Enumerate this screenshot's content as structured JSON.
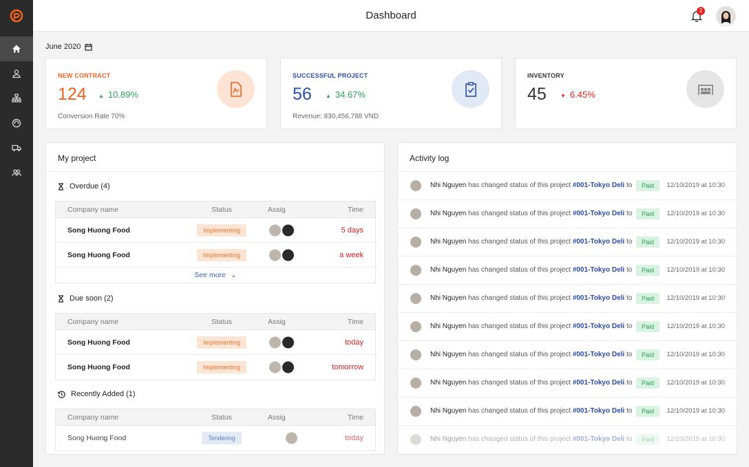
{
  "header": {
    "title": "Dashboard",
    "notification_count": "2"
  },
  "date": {
    "label": "June 2020"
  },
  "sidebar": {
    "items": [
      {
        "name": "home",
        "active": true
      },
      {
        "name": "user"
      },
      {
        "name": "hierarchy"
      },
      {
        "name": "headset"
      },
      {
        "name": "truck"
      },
      {
        "name": "team"
      }
    ]
  },
  "stats": [
    {
      "label": "NEW CONTRACT",
      "value": "124",
      "change": "10.89%",
      "direction": "up",
      "sub": "Conversion Rate 70%",
      "color": "#f0621f",
      "circle_bg": "#fde3d4",
      "icon": "document-icon"
    },
    {
      "label": "SUCCESSFUL PROJECT",
      "value": "56",
      "change": "34.67%",
      "direction": "up",
      "sub": "Revenue: 830,456,788 VND",
      "color": "#2b4ea8",
      "circle_bg": "#e1e8f6",
      "icon": "checklist-icon"
    },
    {
      "label": "INVENTORY",
      "value": "45",
      "change": "6.45%",
      "direction": "down",
      "sub": "",
      "color": "#333333",
      "circle_bg": "#e6e6e6",
      "icon": "warehouse-icon"
    }
  ],
  "colors": {
    "up": "#2ca05a",
    "down": "#e02424",
    "accent": "#2a4aa8"
  },
  "project": {
    "title": "My project",
    "columns": {
      "company": "Company name",
      "status": "Status",
      "assig": "Assig",
      "time": "Time"
    },
    "sections": [
      {
        "title": "Overdue (4)",
        "rows": [
          {
            "company": "Song Huong Food",
            "status": "Implementing",
            "time": "5 days"
          },
          {
            "company": "Song Huong Food",
            "status": "Implementing",
            "time": "a week"
          }
        ],
        "see_more": "See more"
      },
      {
        "title": "Due soon (2)",
        "rows": [
          {
            "company": "Song Huong Food",
            "status": "Implementing",
            "time": "today"
          },
          {
            "company": "Song Huong Food",
            "status": "Implementing",
            "time": "tomorrow"
          }
        ]
      },
      {
        "title": "Recently Added (1)",
        "rows": [
          {
            "company": "Song Huong Food",
            "status": "Tendering",
            "time": "today"
          }
        ]
      }
    ]
  },
  "activity": {
    "title": "Activity log",
    "entries": [
      {
        "user": "Nhi Nguyen",
        "text": "has changed status of this project",
        "project": "#001-Tokyo Deli",
        "to": "to",
        "status": "Paid",
        "date": "12/10/2019 at 10:30"
      },
      {
        "user": "Nhi Nguyen",
        "text": "has changed status of this project",
        "project": "#001-Tokyo Deli",
        "to": "to",
        "status": "Paid",
        "date": "12/10/2019 at 10:30"
      },
      {
        "user": "Nhi Nguyen",
        "text": "has changed status of this project",
        "project": "#001-Tokyo Deli",
        "to": "to",
        "status": "Paid",
        "date": "12/10/2019 at 10:30"
      },
      {
        "user": "Nhi Nguyen",
        "text": "has changed status of this project",
        "project": "#001-Tokyo Deli",
        "to": "to",
        "status": "Paid",
        "date": "12/10/2019 at 10:30"
      },
      {
        "user": "Nhi Nguyen",
        "text": "has changed status of this project",
        "project": "#001-Tokyo Deli",
        "to": "to",
        "status": "Paid",
        "date": "12/10/2019 at 10:30"
      },
      {
        "user": "Nhi Nguyen",
        "text": "has changed status of this project",
        "project": "#001-Tokyo Deli",
        "to": "to",
        "status": "Paid",
        "date": "12/10/2019 at 10:30"
      },
      {
        "user": "Nhi Nguyen",
        "text": "has changed status of this project",
        "project": "#001-Tokyo Deli",
        "to": "to",
        "status": "Paid",
        "date": "12/10/2019 at 10:30"
      },
      {
        "user": "Nhi Nguyen",
        "text": "has changed status of this project",
        "project": "#001-Tokyo Deli",
        "to": "to",
        "status": "Paid",
        "date": "12/10/2019 at 10:30"
      },
      {
        "user": "Nhi Nguyen",
        "text": "has changed status of this project",
        "project": "#001-Tokyo Deli",
        "to": "to",
        "status": "Paid",
        "date": "12/10/2019 at 10:30"
      },
      {
        "user": "Nhi Nguyen",
        "text": "has changed status of this project",
        "project": "#001-Tokyo Deli",
        "to": "to",
        "status": "Paid",
        "date": "12/10/2019 at 10:30"
      }
    ]
  }
}
